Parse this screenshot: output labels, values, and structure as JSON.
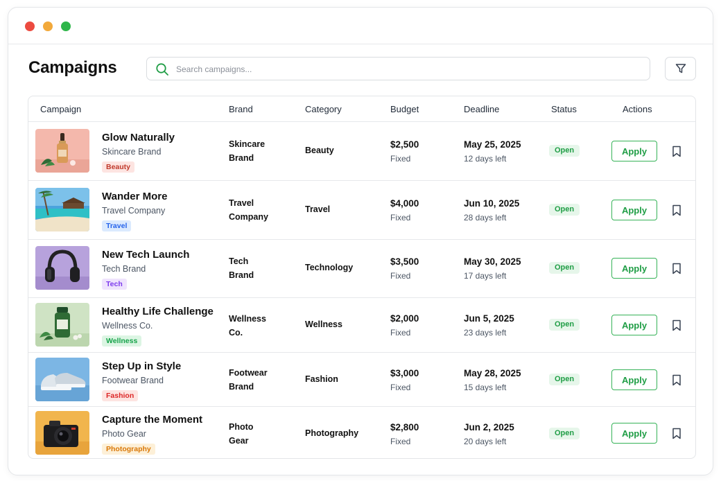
{
  "window": {
    "dots": [
      "close",
      "minimize",
      "maximize"
    ]
  },
  "header": {
    "title": "Campaigns",
    "search": {
      "placeholder": "Search campaigns...",
      "value": ""
    },
    "filter_icon": "filter-icon"
  },
  "table": {
    "columns": [
      "Campaign",
      "Brand",
      "Category",
      "Budget",
      "Deadline",
      "Status",
      "Actions"
    ],
    "rows": [
      {
        "name": "Glow Naturally",
        "brand_sub": "Skincare Brand",
        "tag": "Beauty",
        "brand_line1": "Skincare",
        "brand_line2": "Brand",
        "category": "Beauty",
        "budget": "$2,500",
        "budget_type": "Fixed",
        "deadline": "May 25, 2025",
        "days_left": "12 days left",
        "status": "Open",
        "action": "Apply",
        "image": "serum-bottle"
      },
      {
        "name": "Wander More",
        "brand_sub": "Travel Company",
        "tag": "Travel",
        "brand_line1": "Travel",
        "brand_line2": "Company",
        "category": "Travel",
        "budget": "$4,000",
        "budget_type": "Fixed",
        "deadline": "Jun 10, 2025",
        "days_left": "28 days left",
        "status": "Open",
        "action": "Apply",
        "image": "tropical-beach"
      },
      {
        "name": "New Tech Launch",
        "brand_sub": "Tech Brand",
        "tag": "Tech",
        "brand_line1": "Tech",
        "brand_line2": "Brand",
        "category": "Technology",
        "budget": "$3,500",
        "budget_type": "Fixed",
        "deadline": "May 30, 2025",
        "days_left": "17 days left",
        "status": "Open",
        "action": "Apply",
        "image": "headphones"
      },
      {
        "name": "Healthy Life Challenge",
        "brand_sub": "Wellness Co.",
        "tag": "Wellness",
        "brand_line1": "Wellness",
        "brand_line2": "Co.",
        "category": "Wellness",
        "budget": "$2,000",
        "budget_type": "Fixed",
        "deadline": "Jun 5, 2025",
        "days_left": "23 days left",
        "status": "Open",
        "action": "Apply",
        "image": "supplement-bottle"
      },
      {
        "name": "Step Up in Style",
        "brand_sub": "Footwear Brand",
        "tag": "Fashion",
        "brand_line1": "Footwear",
        "brand_line2": "Brand",
        "category": "Fashion",
        "budget": "$3,000",
        "budget_type": "Fixed",
        "deadline": "May 28, 2025",
        "days_left": "15 days left",
        "status": "Open",
        "action": "Apply",
        "image": "sneakers"
      },
      {
        "name": "Capture the Moment",
        "brand_sub": "Photo Gear",
        "tag": "Photography",
        "brand_line1": "Photo",
        "brand_line2": "Gear",
        "category": "Photography",
        "budget": "$2,800",
        "budget_type": "Fixed",
        "deadline": "Jun 2, 2025",
        "days_left": "20 days left",
        "status": "Open",
        "action": "Apply",
        "image": "camera"
      }
    ]
  },
  "colors": {
    "accent_green": "#1f9d45",
    "status_bg": "#e6f6ea",
    "tag_beauty": "#c0392b",
    "tag_travel": "#2563eb",
    "tag_tech": "#7c3aed",
    "tag_wellness": "#16a34a",
    "tag_fashion": "#dc2626",
    "tag_photography": "#d97706"
  }
}
